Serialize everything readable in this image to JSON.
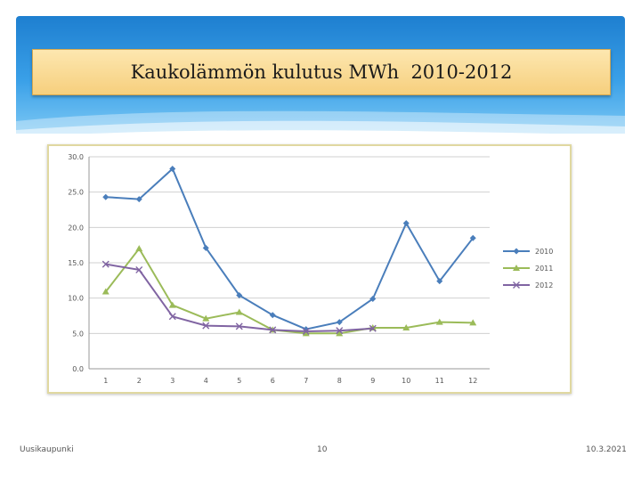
{
  "slide": {
    "title": "Kaukolämmön kulutus MWh  2010-2012",
    "footer_left": "Uusikaupunki",
    "footer_center": "10",
    "footer_right": "10.3.2021"
  },
  "colors": {
    "banner": "#2a8ddc",
    "title_bg": "#f9d98f",
    "series_2010": "#4a7ebb",
    "series_2011": "#9bbb59",
    "series_2012": "#8064a2"
  },
  "chart_data": {
    "type": "line",
    "title": "",
    "xlabel": "",
    "ylabel": "",
    "x": [
      1,
      2,
      3,
      4,
      5,
      6,
      7,
      8,
      9,
      10,
      11,
      12
    ],
    "ylim": [
      0,
      30
    ],
    "yticks": [
      "0.0",
      "5.0",
      "10.0",
      "15.0",
      "20.0",
      "25.0",
      "30.0"
    ],
    "grid": true,
    "legend_position": "right",
    "series": [
      {
        "name": "2010",
        "marker": "diamond",
        "values": [
          24.3,
          24.0,
          28.3,
          17.1,
          10.4,
          7.6,
          5.6,
          6.6,
          9.9,
          20.6,
          12.4,
          18.5
        ]
      },
      {
        "name": "2011",
        "marker": "triangle",
        "values": [
          10.9,
          17.0,
          9.0,
          7.1,
          8.0,
          5.5,
          5.0,
          5.0,
          5.8,
          5.8,
          6.6,
          6.5
        ]
      },
      {
        "name": "2012",
        "marker": "x",
        "values": [
          14.8,
          14.0,
          7.4,
          6.1,
          6.0,
          5.5,
          5.3,
          5.4,
          5.7,
          null,
          null,
          null
        ]
      }
    ]
  }
}
